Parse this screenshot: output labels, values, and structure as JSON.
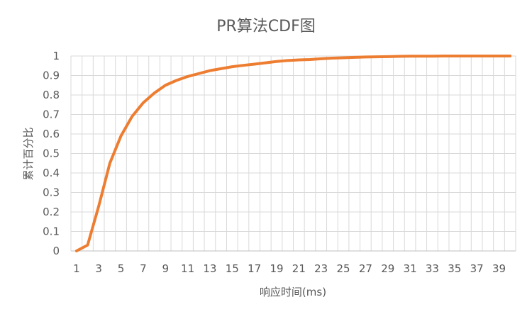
{
  "chart_data": {
    "type": "line",
    "title": "PR算法CDF图",
    "xlabel": "响应时间(ms)",
    "ylabel": "累计百分比",
    "x": [
      1,
      2,
      3,
      4,
      5,
      6,
      7,
      8,
      9,
      10,
      11,
      12,
      13,
      14,
      15,
      16,
      17,
      18,
      19,
      20,
      21,
      22,
      23,
      24,
      25,
      26,
      27,
      28,
      29,
      30,
      31,
      32,
      33,
      34,
      35,
      36,
      37,
      38,
      39,
      40
    ],
    "x_tick_labels": [
      "1",
      "3",
      "5",
      "7",
      "9",
      "11",
      "13",
      "15",
      "17",
      "19",
      "21",
      "23",
      "25",
      "27",
      "29",
      "31",
      "33",
      "35",
      "37",
      "39"
    ],
    "y_tick_labels": [
      "0",
      "0.1",
      "0.2",
      "0.3",
      "0.4",
      "0.5",
      "0.6",
      "0.7",
      "0.8",
      "0.9",
      "1"
    ],
    "ylim": [
      0,
      1
    ],
    "grid": true,
    "series": [
      {
        "color": "#ed7d31",
        "values": [
          0,
          0.03,
          0.23,
          0.45,
          0.59,
          0.69,
          0.76,
          0.81,
          0.85,
          0.875,
          0.895,
          0.91,
          0.925,
          0.935,
          0.945,
          0.952,
          0.958,
          0.965,
          0.972,
          0.977,
          0.98,
          0.982,
          0.986,
          0.989,
          0.991,
          0.993,
          0.995,
          0.996,
          0.997,
          0.998,
          0.999,
          0.999,
          0.999,
          1,
          1,
          1,
          1,
          1,
          1,
          1
        ]
      }
    ]
  }
}
